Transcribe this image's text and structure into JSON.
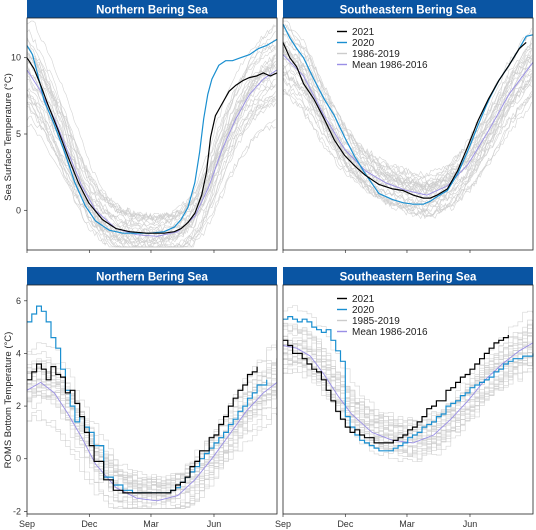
{
  "colors": {
    "strip": "#0a55a3",
    "y2021": "#000000",
    "y2020": "#1a8fd0",
    "history": "#cccccc",
    "mean": "#9a8fe6"
  },
  "chart_data": [
    {
      "type": "line",
      "panel": "Northern Bering Sea",
      "ylabel": "Sea Surface Temperature (°C)",
      "y_ticks": [
        "0",
        "5",
        "10"
      ],
      "y_tick_values": [
        0,
        5,
        10
      ],
      "ylim": [
        -2.6,
        12.6
      ],
      "x_ticks": [],
      "xlim_days": [
        0,
        365
      ],
      "legend": null,
      "series": [
        {
          "name": "2021",
          "x_days": [
            0,
            10,
            20,
            30,
            45,
            60,
            75,
            90,
            110,
            130,
            150,
            175,
            200,
            215,
            225,
            235,
            245,
            255,
            262,
            268,
            275,
            285,
            295,
            305,
            315,
            325,
            335,
            345,
            355,
            365
          ],
          "values": [
            10,
            9.3,
            8.2,
            7.0,
            5.3,
            3.5,
            1.8,
            0.5,
            -0.6,
            -1.2,
            -1.4,
            -1.5,
            -1.5,
            -1.4,
            -1.2,
            -0.8,
            -0.2,
            1.0,
            2.5,
            4.8,
            6.2,
            7.0,
            7.8,
            8.2,
            8.5,
            8.7,
            8.8,
            9.0,
            8.8,
            9.0
          ]
        },
        {
          "name": "2020",
          "x_days": [
            0,
            8,
            15,
            25,
            40,
            55,
            70,
            85,
            100,
            120,
            140,
            160,
            180,
            200,
            215,
            225,
            235,
            245,
            252,
            258,
            264,
            270,
            280,
            290,
            300,
            312,
            325,
            338,
            350,
            365
          ],
          "values": [
            10.8,
            10.2,
            9.0,
            7.2,
            5.6,
            3.8,
            1.8,
            0.3,
            -0.7,
            -1.3,
            -1.5,
            -1.5,
            -1.5,
            -1.4,
            -1.1,
            -0.6,
            0.2,
            1.8,
            3.8,
            6.0,
            7.6,
            8.6,
            9.5,
            9.8,
            9.8,
            10.0,
            10.2,
            10.6,
            10.8,
            11.2
          ]
        },
        {
          "name": "Mean 1986-2016",
          "x_days": [
            0,
            20,
            40,
            60,
            80,
            100,
            130,
            160,
            190,
            220,
            245,
            265,
            285,
            305,
            325,
            345,
            365
          ],
          "values": [
            9.2,
            7.8,
            6.0,
            3.8,
            1.6,
            0.0,
            -1.2,
            -1.6,
            -1.7,
            -1.4,
            -0.4,
            1.5,
            4.0,
            6.0,
            7.6,
            8.6,
            9.2
          ]
        }
      ]
    },
    {
      "type": "line",
      "panel": "Southeastern Bering Sea",
      "ylabel": "",
      "y_ticks": [],
      "ylim": [
        -2.6,
        12.6
      ],
      "x_ticks": [],
      "xlim_days": [
        0,
        365
      ],
      "legend": {
        "position": "top-center",
        "entries": [
          "2021",
          "2020",
          "1986-2019",
          "Mean 1986-2016"
        ]
      },
      "series": [
        {
          "name": "2021",
          "x_days": [
            0,
            10,
            20,
            30,
            45,
            60,
            75,
            90,
            105,
            120,
            140,
            160,
            175,
            190,
            205,
            215,
            225,
            240,
            255,
            270,
            285,
            300,
            315,
            330,
            345,
            355
          ],
          "values": [
            11.0,
            10.0,
            9.4,
            8.3,
            7.3,
            6.0,
            4.6,
            3.6,
            2.9,
            2.3,
            1.7,
            1.4,
            1.3,
            1.0,
            0.8,
            0.8,
            1.0,
            1.4,
            2.6,
            4.2,
            5.9,
            7.3,
            8.5,
            9.5,
            10.6,
            11.0
          ]
        },
        {
          "name": "2020",
          "x_days": [
            0,
            10,
            20,
            30,
            45,
            60,
            75,
            90,
            105,
            120,
            140,
            160,
            175,
            190,
            205,
            215,
            225,
            240,
            255,
            270,
            285,
            300,
            315,
            330,
            345,
            355,
            365
          ],
          "values": [
            12.2,
            11.3,
            10.6,
            10.0,
            8.6,
            7.3,
            6.2,
            4.8,
            3.5,
            2.4,
            1.1,
            0.7,
            0.5,
            0.4,
            0.4,
            0.6,
            0.9,
            1.3,
            2.4,
            3.9,
            5.6,
            7.2,
            8.5,
            9.5,
            10.6,
            11.4,
            11.5
          ]
        },
        {
          "name": "Mean 1986-2016",
          "x_days": [
            0,
            30,
            60,
            90,
            120,
            150,
            180,
            210,
            240,
            270,
            300,
            330,
            365
          ],
          "values": [
            10.2,
            8.8,
            6.2,
            4.0,
            2.6,
            1.8,
            1.3,
            1.0,
            1.6,
            3.0,
            5.2,
            7.6,
            9.7
          ]
        }
      ]
    },
    {
      "type": "line",
      "panel": "Northern Bering Sea",
      "ylabel": "ROMS Bottom Temperature (°C)",
      "y_ticks": [
        "-2",
        "0",
        "2",
        "4",
        "6"
      ],
      "y_tick_values": [
        -2,
        0,
        2,
        4,
        6
      ],
      "ylim": [
        -2.1,
        6.6
      ],
      "x_ticks": [
        "Sep",
        "Dec",
        "Mar",
        "Jun"
      ],
      "x_tick_days": [
        0,
        91,
        181,
        273
      ],
      "xlim_days": [
        0,
        365
      ],
      "legend": null,
      "series": [
        {
          "name": "2021",
          "x_days": [
            0,
            7,
            14,
            21,
            28,
            35,
            42,
            49,
            56,
            63,
            70,
            77,
            84,
            91,
            98,
            112,
            126,
            140,
            154,
            168,
            182,
            196,
            210,
            217,
            224,
            231,
            238,
            245,
            252,
            259,
            266,
            273,
            280,
            287,
            294,
            301,
            308,
            315,
            322,
            329,
            336
          ],
          "values": [
            3.0,
            3.3,
            3.6,
            3.4,
            3.0,
            3.5,
            3.2,
            3.1,
            2.5,
            2.6,
            2.1,
            1.6,
            1.0,
            0.5,
            -0.1,
            -0.8,
            -1.2,
            -1.3,
            -1.3,
            -1.3,
            -1.3,
            -1.3,
            -1.2,
            -1.0,
            -0.9,
            -0.7,
            -0.3,
            -0.1,
            0.3,
            0.3,
            0.8,
            0.9,
            1.3,
            1.6,
            2.0,
            2.3,
            2.6,
            2.8,
            3.2,
            3.3,
            3.5
          ]
        },
        {
          "name": "2020",
          "x_days": [
            0,
            7,
            14,
            21,
            28,
            35,
            42,
            49,
            56,
            63,
            70,
            77,
            84,
            91,
            98,
            112,
            126,
            140,
            154,
            168,
            182,
            196,
            210,
            217,
            224,
            231,
            238,
            245,
            252,
            259,
            266,
            273,
            280,
            287,
            294,
            301,
            308,
            315,
            322,
            329,
            336,
            350
          ],
          "values": [
            5.2,
            5.5,
            5.8,
            5.6,
            5.2,
            4.6,
            4.2,
            3.4,
            2.6,
            2.0,
            1.4,
            1.6,
            1.2,
            1.0,
            0.5,
            -0.7,
            -1.0,
            -1.2,
            -1.3,
            -1.3,
            -1.3,
            -1.3,
            -1.2,
            -1.1,
            -0.9,
            -0.7,
            -0.5,
            -0.3,
            0.0,
            0.2,
            0.4,
            0.6,
            0.8,
            1.0,
            1.3,
            1.5,
            1.8,
            2.0,
            2.3,
            2.5,
            2.8,
            3.0
          ]
        },
        {
          "name": "Mean 1986-2016",
          "x_days": [
            0,
            20,
            40,
            60,
            80,
            100,
            130,
            160,
            190,
            220,
            245,
            270,
            295,
            320,
            345,
            365
          ],
          "values": [
            2.6,
            2.9,
            2.5,
            1.7,
            0.8,
            -0.2,
            -1.1,
            -1.5,
            -1.6,
            -1.4,
            -0.8,
            0.0,
            0.9,
            1.8,
            2.5,
            2.9
          ]
        }
      ]
    },
    {
      "type": "line",
      "panel": "Southeastern Bering Sea",
      "ylabel": "",
      "y_ticks": [],
      "ylim": [
        -2.1,
        6.6
      ],
      "x_ticks": [
        "Sep",
        "Dec",
        "Mar",
        "Jun"
      ],
      "x_tick_days": [
        0,
        91,
        181,
        273
      ],
      "xlim_days": [
        0,
        365
      ],
      "legend": {
        "position": "top-center",
        "entries": [
          "2021",
          "2020",
          "1985-2019",
          "Mean 1986-2016"
        ]
      },
      "series": [
        {
          "name": "2021",
          "x_days": [
            0,
            7,
            14,
            21,
            28,
            35,
            42,
            49,
            56,
            63,
            70,
            77,
            84,
            91,
            98,
            105,
            112,
            119,
            126,
            133,
            140,
            147,
            154,
            161,
            168,
            175,
            182,
            189,
            196,
            203,
            210,
            217,
            224,
            231,
            238,
            245,
            252,
            259,
            266,
            273,
            280,
            287,
            294,
            301,
            308,
            315,
            322,
            329
          ],
          "values": [
            4.5,
            4.3,
            4.0,
            4.0,
            3.8,
            3.6,
            3.4,
            3.3,
            3.0,
            2.6,
            2.2,
            1.8,
            1.5,
            1.2,
            1.0,
            1.1,
            0.9,
            0.8,
            0.8,
            0.6,
            0.6,
            0.6,
            0.6,
            0.7,
            0.8,
            0.9,
            1.1,
            1.2,
            1.4,
            1.6,
            1.9,
            2.0,
            2.2,
            2.2,
            2.6,
            2.7,
            2.9,
            3.1,
            3.2,
            3.4,
            3.6,
            3.8,
            4.0,
            4.2,
            4.4,
            4.5,
            4.6,
            4.7
          ]
        },
        {
          "name": "2020",
          "x_days": [
            0,
            7,
            14,
            21,
            28,
            35,
            42,
            49,
            56,
            63,
            70,
            77,
            84,
            91,
            98,
            105,
            112,
            119,
            126,
            133,
            140,
            147,
            154,
            161,
            168,
            175,
            182,
            189,
            196,
            203,
            210,
            217,
            224,
            231,
            238,
            245,
            252,
            259,
            266,
            273,
            280,
            287,
            294,
            301,
            308,
            315,
            322,
            329,
            336,
            350,
            365
          ],
          "values": [
            5.3,
            5.4,
            5.3,
            5.2,
            5.3,
            5.2,
            5.0,
            4.9,
            4.8,
            4.9,
            4.5,
            4.1,
            3.7,
            1.6,
            1.2,
            0.9,
            0.7,
            0.6,
            0.5,
            0.4,
            0.3,
            0.3,
            0.3,
            0.4,
            0.5,
            0.6,
            0.8,
            0.9,
            1.0,
            1.2,
            1.3,
            1.4,
            1.6,
            1.7,
            2.0,
            2.1,
            2.2,
            2.4,
            2.5,
            2.7,
            2.8,
            2.9,
            3.0,
            3.1,
            3.3,
            3.4,
            3.6,
            3.7,
            3.8,
            3.9,
            4.0
          ]
        },
        {
          "name": "Mean 1986-2016",
          "x_days": [
            0,
            20,
            40,
            60,
            80,
            100,
            130,
            160,
            190,
            220,
            245,
            270,
            295,
            320,
            345,
            365
          ],
          "values": [
            4.3,
            4.2,
            3.9,
            3.2,
            2.4,
            1.7,
            1.0,
            0.7,
            0.6,
            0.9,
            1.5,
            2.2,
            3.0,
            3.6,
            4.1,
            4.4
          ]
        }
      ]
    }
  ]
}
